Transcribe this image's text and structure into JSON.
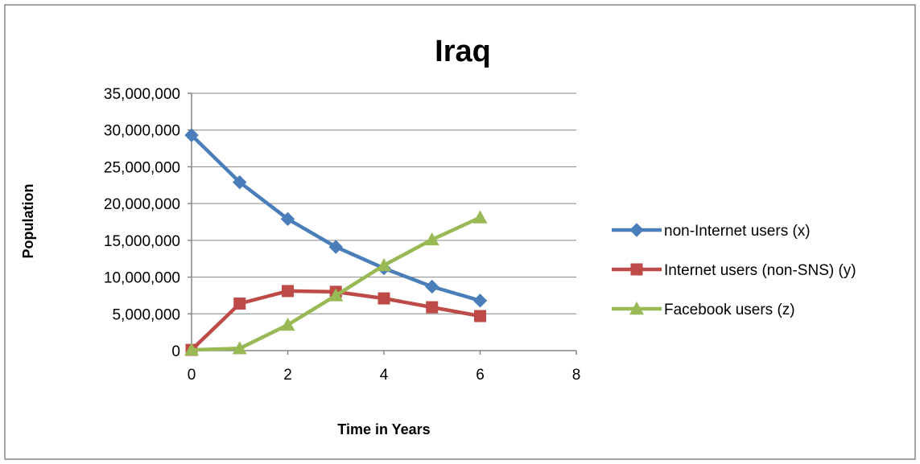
{
  "chart_data": {
    "type": "line",
    "title": "Iraq",
    "xlabel": "Time in Years",
    "ylabel": "Population",
    "xlim": [
      0,
      8
    ],
    "ylim": [
      0,
      35000000
    ],
    "x_ticks": [
      "0",
      "2",
      "4",
      "6",
      "8"
    ],
    "y_ticks": [
      "0",
      "5,000,000",
      "10,000,000",
      "15,000,000",
      "20,000,000",
      "25,000,000",
      "30,000,000",
      "35,000,000"
    ],
    "grid": "horizontal",
    "legend_position": "right",
    "x": [
      0,
      1,
      2,
      3,
      4,
      5,
      6
    ],
    "series": [
      {
        "name": "non-Internet users (x)",
        "marker": "diamond",
        "color": "#4a7ebb",
        "values": [
          29300000,
          22900000,
          17900000,
          14100000,
          11200000,
          8700000,
          6800000
        ]
      },
      {
        "name": "Internet users (non-SNS) (y)",
        "marker": "square",
        "color": "#be4b48",
        "values": [
          100000,
          6400000,
          8100000,
          8000000,
          7100000,
          5900000,
          4700000
        ]
      },
      {
        "name": "Facebook users (z)",
        "marker": "triangle",
        "color": "#98b954",
        "values": [
          100000,
          300000,
          3500000,
          7500000,
          11600000,
          15100000,
          18100000
        ]
      }
    ]
  }
}
